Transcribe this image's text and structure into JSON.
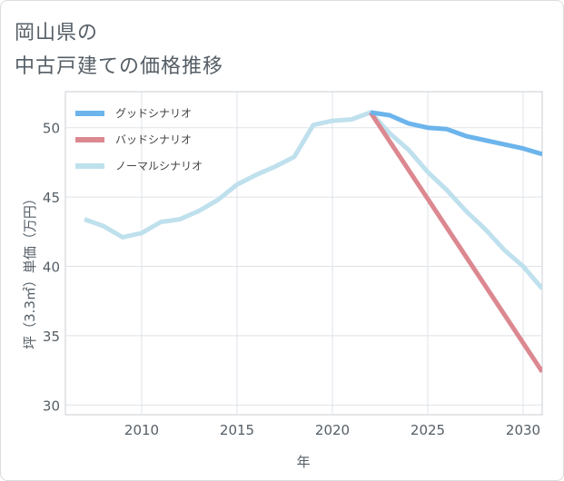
{
  "title_lines": [
    "岡山県の",
    "中古戸建ての価格推移"
  ],
  "chart_data": {
    "type": "line",
    "title": "岡山県の中古戸建ての価格推移",
    "xlabel": "年",
    "ylabel": "坪（3.3㎡）単価（万円）",
    "xlim": [
      2006,
      2031
    ],
    "ylim": [
      29.3,
      52.6
    ],
    "xticks": [
      2010,
      2015,
      2020,
      2025,
      2030
    ],
    "yticks": [
      30,
      35,
      40,
      45,
      50
    ],
    "grid": true,
    "legend_position": "top-left",
    "series": [
      {
        "name": "グッドシナリオ",
        "color": "#6cb4ec",
        "x": [
          2022,
          2023,
          2024,
          2025,
          2026,
          2027,
          2028,
          2029,
          2030,
          2031
        ],
        "y": [
          51.1,
          50.9,
          50.3,
          50.0,
          49.9,
          49.4,
          49.1,
          48.8,
          48.5,
          48.1
        ]
      },
      {
        "name": "バッドシナリオ",
        "color": "#dc8890",
        "x": [
          2022,
          2031
        ],
        "y": [
          51.1,
          32.4
        ]
      },
      {
        "name": "ノーマルシナリオ",
        "color": "#bfe0ed",
        "x": [
          2007,
          2008,
          2009,
          2010,
          2011,
          2012,
          2013,
          2014,
          2015,
          2016,
          2017,
          2018,
          2019,
          2020,
          2021,
          2022,
          2023,
          2024,
          2025,
          2026,
          2027,
          2028,
          2029,
          2030,
          2031
        ],
        "y": [
          43.4,
          42.9,
          42.1,
          42.4,
          43.2,
          43.4,
          44.0,
          44.8,
          45.9,
          46.6,
          47.2,
          47.9,
          50.2,
          50.5,
          50.6,
          51.1,
          49.6,
          48.4,
          46.8,
          45.5,
          44.0,
          42.7,
          41.2,
          40.0,
          38.4
        ]
      }
    ]
  }
}
